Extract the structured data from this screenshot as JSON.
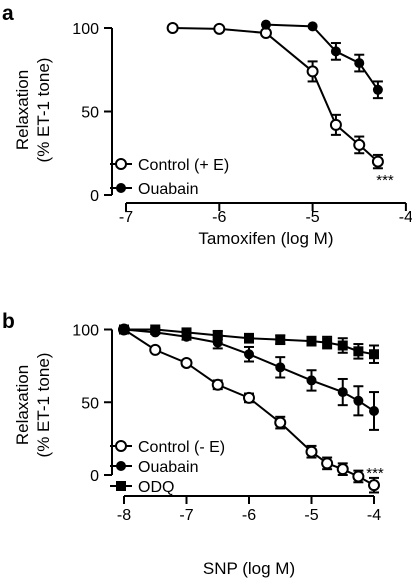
{
  "chart_data": [
    {
      "panel_label": "a",
      "type": "line",
      "xlabel": "Tamoxifen (log M)",
      "ylabel_line1": "Relaxation",
      "ylabel_line2": "(% ET-1 tone)",
      "xlim": [
        -7,
        -4
      ],
      "ylim": [
        0,
        100
      ],
      "xticks": [
        -7,
        -6,
        -5,
        -4
      ],
      "yticks": [
        0,
        50,
        100
      ],
      "grid": false,
      "legend_position": "bottom-left",
      "annotation": "***",
      "series": [
        {
          "name": "Control (+ E)",
          "marker": "open-circle",
          "x": [
            -6.5,
            -6.0,
            -5.5,
            -5.0,
            -4.75,
            -4.5,
            -4.3
          ],
          "y": [
            100,
            99.5,
            97,
            74,
            42,
            30,
            20
          ],
          "err": [
            0,
            0,
            1.5,
            6,
            6,
            5,
            4
          ]
        },
        {
          "name": "Ouabain",
          "marker": "filled-circle",
          "x": [
            -5.5,
            -5.0,
            -4.75,
            -4.5,
            -4.3
          ],
          "y": [
            102,
            101,
            86,
            79,
            63
          ],
          "err": [
            0,
            0,
            5,
            5,
            5
          ]
        }
      ]
    },
    {
      "panel_label": "b",
      "type": "line",
      "xlabel": "SNP (log M)",
      "ylabel_line1": "Relaxation",
      "ylabel_line2": "(% ET-1 tone)",
      "xlim": [
        -8,
        -4
      ],
      "ylim": [
        -10,
        100
      ],
      "xticks": [
        -8,
        -7,
        -6,
        -5,
        -4
      ],
      "yticks": [
        0,
        50,
        100
      ],
      "grid": false,
      "legend_position": "bottom-left",
      "annotation": "***",
      "series": [
        {
          "name": "Control (- E)",
          "marker": "open-circle",
          "x": [
            -8.0,
            -7.5,
            -7.0,
            -6.5,
            -6.0,
            -5.5,
            -5.0,
            -4.75,
            -4.5,
            -4.25,
            -4.0
          ],
          "y": [
            100,
            86,
            77,
            62,
            53,
            36,
            16,
            8,
            4,
            -1,
            -7
          ],
          "err": [
            0,
            1,
            2,
            3,
            3,
            4,
            4,
            4,
            4,
            4,
            5
          ]
        },
        {
          "name": "Ouabain",
          "marker": "filled-circle",
          "x": [
            -8.0,
            -7.5,
            -7.0,
            -6.5,
            -6.0,
            -5.5,
            -5.0,
            -4.5,
            -4.25,
            -4.0
          ],
          "y": [
            100,
            98,
            95,
            91,
            83,
            74,
            65,
            57,
            51,
            44
          ],
          "err": [
            0,
            1,
            2,
            4,
            5,
            7,
            7,
            9,
            10,
            13
          ]
        },
        {
          "name": "ODQ",
          "marker": "filled-square",
          "x": [
            -8.0,
            -7.5,
            -7.0,
            -6.5,
            -6.0,
            -5.5,
            -5.0,
            -4.75,
            -4.5,
            -4.25,
            -4.0
          ],
          "y": [
            100,
            100,
            98,
            96,
            94,
            93,
            92,
            91,
            89,
            85,
            83
          ],
          "err": [
            0,
            1,
            2,
            3,
            3,
            3,
            3,
            4,
            5,
            5,
            6
          ]
        }
      ]
    }
  ]
}
